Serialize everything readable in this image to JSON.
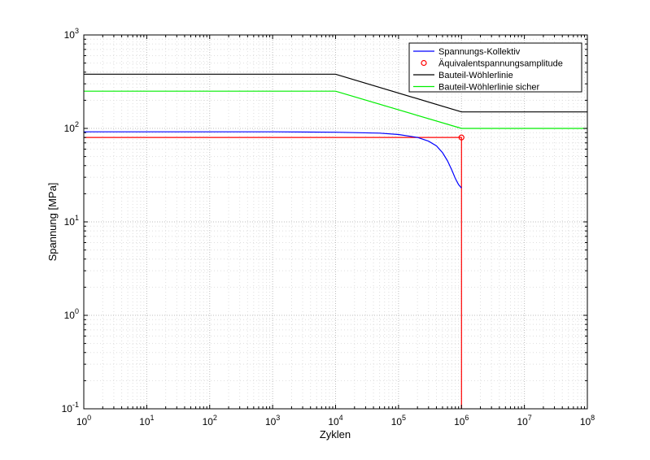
{
  "chart_data": {
    "type": "line",
    "title": "",
    "xlabel": "Zyklen",
    "ylabel": "Spannung [MPa]",
    "xscale": "log",
    "yscale": "log",
    "xlim": [
      1,
      100000000
    ],
    "ylim": [
      0.1,
      1000
    ],
    "grid": true,
    "minor_grid": true,
    "legend_position": "top-right",
    "x_ticks": [
      {
        "value": 1,
        "base": "10",
        "exp": "0"
      },
      {
        "value": 10,
        "base": "10",
        "exp": "1"
      },
      {
        "value": 100,
        "base": "10",
        "exp": "2"
      },
      {
        "value": 1000,
        "base": "10",
        "exp": "3"
      },
      {
        "value": 10000,
        "base": "10",
        "exp": "4"
      },
      {
        "value": 100000,
        "base": "10",
        "exp": "5"
      },
      {
        "value": 1000000,
        "base": "10",
        "exp": "6"
      },
      {
        "value": 10000000,
        "base": "10",
        "exp": "7"
      },
      {
        "value": 100000000,
        "base": "10",
        "exp": "8"
      }
    ],
    "y_ticks": [
      {
        "value": 0.1,
        "base": "10",
        "exp": "-1"
      },
      {
        "value": 1,
        "base": "10",
        "exp": "0"
      },
      {
        "value": 10,
        "base": "10",
        "exp": "1"
      },
      {
        "value": 100,
        "base": "10",
        "exp": "2"
      },
      {
        "value": 1000,
        "base": "10",
        "exp": "3"
      }
    ],
    "series": [
      {
        "name": "Spannungs-Kollektiv",
        "kind": "line",
        "color": "#0000ff",
        "x": [
          1,
          10,
          100,
          1000,
          10000,
          50000,
          100000,
          200000,
          300000,
          400000,
          500000,
          600000,
          700000,
          800000,
          900000,
          1000000
        ],
        "y": [
          92,
          92,
          92,
          92,
          91,
          89,
          86,
          80,
          73,
          65,
          55,
          45,
          36,
          29,
          25,
          23
        ]
      },
      {
        "name": "Äquivalentspannungsamplitude",
        "kind": "marker",
        "color": "#ff0000",
        "x": [
          1000000
        ],
        "y": [
          80
        ]
      },
      {
        "name": "Bauteil-Wöhlerlinie",
        "kind": "line",
        "color": "#000000",
        "x": [
          1,
          10000,
          1000000,
          100000000
        ],
        "y": [
          380,
          380,
          150,
          150
        ]
      },
      {
        "name": "Bauteil-Wöhlerlinie sicher",
        "kind": "line",
        "color": "#00ee00",
        "x": [
          1,
          10000,
          1000000,
          100000000
        ],
        "y": [
          250,
          250,
          100,
          100
        ]
      }
    ],
    "reference_lines": {
      "color": "#ff0000",
      "x": [
        1,
        1000000,
        1000000
      ],
      "y": [
        80,
        80,
        0.1
      ]
    }
  }
}
